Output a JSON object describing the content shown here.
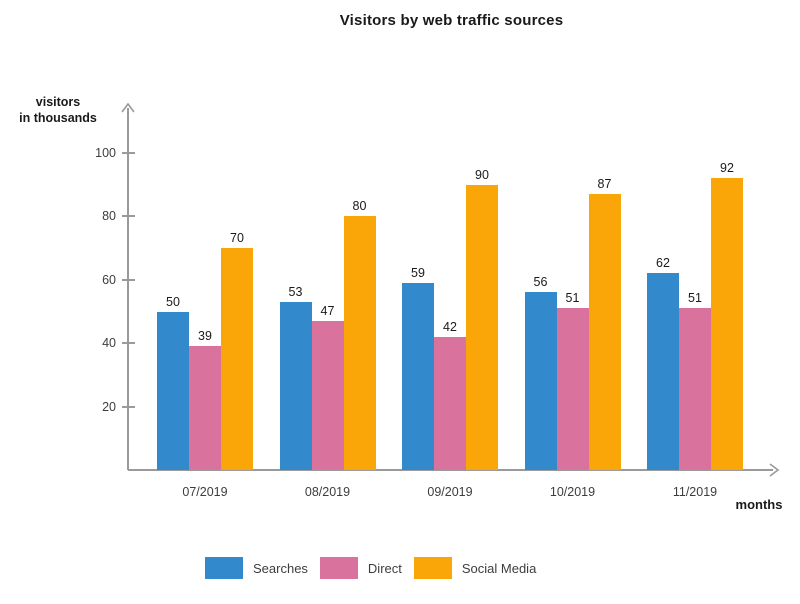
{
  "chart_data": {
    "type": "bar",
    "title": "Visitors by web traffic sources",
    "ylabel_line1": "visitors",
    "ylabel_line2": "in thousands",
    "xlabel": "months",
    "categories": [
      "07/2019",
      "08/2019",
      "09/2019",
      "10/2019",
      "11/2019"
    ],
    "series": [
      {
        "name": "Searches",
        "color": "#3289CB",
        "values": [
          50,
          53,
          59,
          56,
          62
        ]
      },
      {
        "name": "Direct",
        "color": "#D9739D",
        "values": [
          39,
          47,
          42,
          51,
          51
        ]
      },
      {
        "name": "Social Media",
        "color": "#FBA608",
        "values": [
          70,
          80,
          90,
          87,
          92
        ]
      }
    ],
    "yticks": [
      20,
      40,
      60,
      80,
      100
    ],
    "ylim": [
      0,
      114
    ],
    "grid": false,
    "legend_position": "bottom",
    "bar_value_labels": true
  },
  "colors": {
    "axis": "#9a9a9a",
    "tick_text": "#3d3d3d",
    "value_text": "#1a1a1a",
    "title_text": "#1a1a1a",
    "background": "#ffffff"
  }
}
